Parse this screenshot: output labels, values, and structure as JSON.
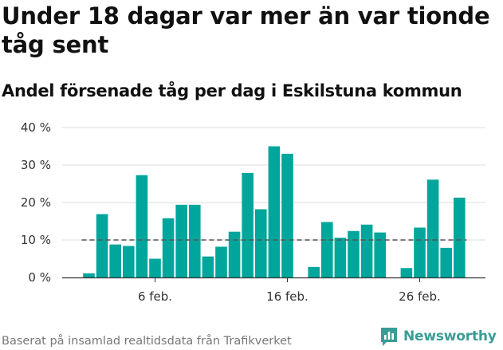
{
  "title": "Under 18 dagar var mer än var tionde tåg sent",
  "subtitle": "Andel försenade tåg per dag i Eskilstuna kommun",
  "footer": "Baserat på insamlad realtidsdata från Trafikverket",
  "brand": "Newsworthy",
  "colors": {
    "bar": "#00a69c",
    "reference_line": "#555555",
    "grid": "#dddddd",
    "brand": "#3a9c95"
  },
  "chart_data": {
    "type": "bar",
    "title": "Under 18 dagar var mer än var tionde tåg sent",
    "subtitle": "Andel försenade tåg per dag i Eskilstuna kommun",
    "xlabel": "",
    "ylabel": "",
    "ylim": [
      0,
      40
    ],
    "y_ticks": [
      0,
      10,
      20,
      30,
      40
    ],
    "y_tick_labels": [
      "0 %",
      "10 %",
      "20 %",
      "30 %",
      "40 %"
    ],
    "x_ticks": [
      {
        "day": 6,
        "label": "6 feb."
      },
      {
        "day": 16,
        "label": "16 feb."
      },
      {
        "day": 26,
        "label": "26 feb."
      }
    ],
    "days": [
      1,
      2,
      3,
      4,
      5,
      6,
      7,
      8,
      9,
      10,
      11,
      12,
      13,
      14,
      15,
      16,
      17,
      18,
      19,
      20,
      21,
      22,
      23,
      24,
      25,
      26,
      27,
      28,
      29
    ],
    "values": [
      1.1,
      16.9,
      8.8,
      8.4,
      27.3,
      5.0,
      15.8,
      19.4,
      19.4,
      5.6,
      8.2,
      12.2,
      27.9,
      18.2,
      35.0,
      33.0,
      null,
      2.8,
      14.8,
      10.6,
      12.4,
      14.1,
      12.0,
      null,
      2.5,
      13.3,
      26.1,
      7.9,
      21.3
    ],
    "reference_line": 10,
    "grid": true,
    "legend": "none"
  }
}
